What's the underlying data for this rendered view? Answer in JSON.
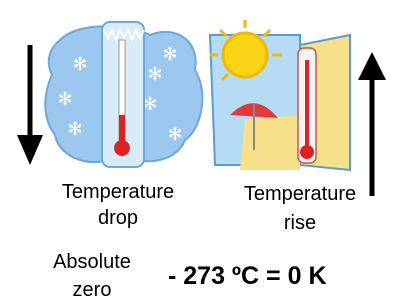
{
  "cold": {
    "label": [
      "Temperature",
      "drop"
    ]
  },
  "warm": {
    "label": [
      "Temperature",
      "rise"
    ]
  },
  "absolute_zero": {
    "label": [
      "Absolute",
      "zero"
    ],
    "equation": "- 273 ºC = 0 K"
  }
}
